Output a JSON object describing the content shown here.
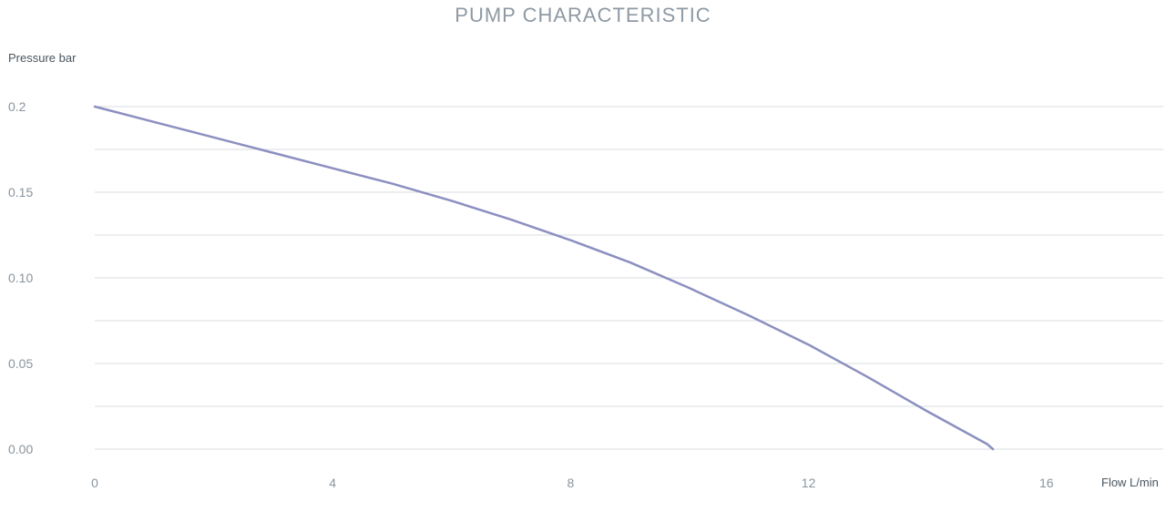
{
  "chart_data": {
    "type": "line",
    "title": "PUMP CHARACTERISTIC",
    "ylabel": "Pressure bar",
    "xlabel": "Flow L/min",
    "xlim": [
      0,
      18
    ],
    "ylim": [
      0,
      0.2
    ],
    "x_ticks": [
      0,
      4,
      8,
      12,
      16
    ],
    "x_tick_labels": [
      "0",
      "4",
      "8",
      "12",
      "16"
    ],
    "y_ticks": [
      0.2,
      0.15,
      0.1,
      0.05,
      0.0
    ],
    "y_tick_labels": [
      "0.2",
      "0.15",
      "0.10",
      "0.05",
      "0.00"
    ],
    "y_gridlines": [
      0,
      0.025,
      0.05,
      0.075,
      0.1,
      0.125,
      0.15,
      0.175,
      0.2
    ],
    "grid": true,
    "colors": {
      "line": "#8c8fc0",
      "grid": "#d9dcdf",
      "tick_text": "#8a949d"
    },
    "series": [
      {
        "x": [
          0,
          1,
          2,
          3,
          4,
          5,
          6,
          7,
          8,
          9,
          10,
          11,
          12,
          13,
          14,
          15,
          15.1
        ],
        "y": [
          0.2,
          0.191,
          0.182,
          0.173,
          0.164,
          0.155,
          0.145,
          0.134,
          0.122,
          0.109,
          0.094,
          0.078,
          0.061,
          0.042,
          0.022,
          0.003,
          0.0
        ]
      }
    ]
  }
}
